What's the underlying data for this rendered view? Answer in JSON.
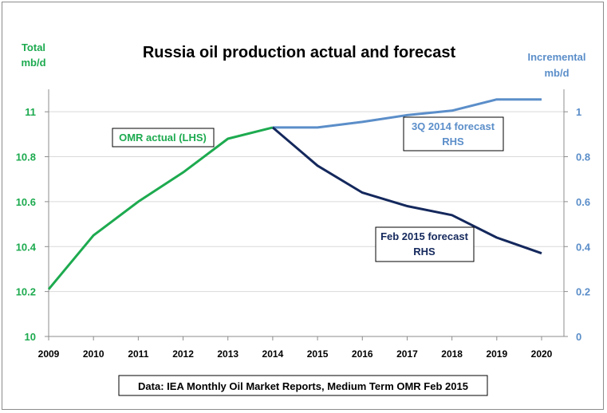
{
  "chart_data": {
    "type": "line",
    "title": "Russia oil production actual and forecast",
    "left_axis": {
      "label_lines": [
        "Total",
        "mb/d"
      ],
      "color": "#1daa4f",
      "ylim": [
        10,
        11.1
      ],
      "ticks": [
        "10",
        "10.2",
        "10.4",
        "10.6",
        "10.8",
        "11"
      ]
    },
    "right_axis": {
      "label_lines": [
        "Incremental",
        "mb/d"
      ],
      "color": "#5b8ec9",
      "ylim": [
        0,
        1.1
      ],
      "ticks": [
        "0",
        "0.2",
        "0.4",
        "0.6",
        "0.8",
        "1"
      ]
    },
    "categories": [
      "2009",
      "2010",
      "2011",
      "2012",
      "2013",
      "2014",
      "2015",
      "2016",
      "2017",
      "2018",
      "2019",
      "2020"
    ],
    "series": [
      {
        "name": "OMR actual (LHS)",
        "axis": "left",
        "color": "#1daa4f",
        "x": [
          "2009",
          "2010",
          "2011",
          "2012",
          "2013",
          "2014"
        ],
        "values": [
          10.21,
          10.45,
          10.6,
          10.73,
          10.88,
          10.93
        ]
      },
      {
        "name": "3Q 2014 forecast RHS",
        "axis": "right",
        "color": "#5b8ec9",
        "x": [
          "2014",
          "2015",
          "2016",
          "2017",
          "2018",
          "2019",
          "2020"
        ],
        "values": [
          0.93,
          0.93,
          0.955,
          0.985,
          1.005,
          1.055,
          1.055
        ]
      },
      {
        "name": "Feb 2015 forecast RHS",
        "axis": "right",
        "color": "#14285c",
        "x": [
          "2014",
          "2015",
          "2016",
          "2017",
          "2018",
          "2019",
          "2020"
        ],
        "values": [
          0.93,
          0.76,
          0.64,
          0.58,
          0.54,
          0.44,
          0.37
        ]
      }
    ],
    "annotations": {
      "actual": "OMR actual (LHS)",
      "q3_line1": "3Q 2014 forecast",
      "q3_line2": "RHS",
      "feb_line1": "Feb 2015 forecast",
      "feb_line2": "RHS"
    },
    "source": "Data: IEA Monthly Oil Market Reports, Medium Term OMR Feb 2015",
    "grid": "horizontal",
    "legend": "none"
  }
}
